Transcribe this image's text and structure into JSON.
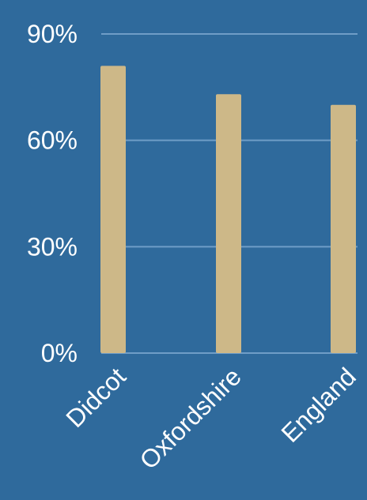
{
  "colors": {
    "background": "#2f6a9c",
    "bar": "#cdb888",
    "grid": "#6f9dc7",
    "text": "#ffffff"
  },
  "chart_data": {
    "type": "bar",
    "categories": [
      "Didcot",
      "Oxfordshire",
      "England"
    ],
    "values": [
      81,
      73,
      70
    ],
    "value_unit": "%",
    "ylim": [
      0,
      90
    ],
    "yticks": [
      {
        "value": 0,
        "label": "0%"
      },
      {
        "value": 30,
        "label": "30%"
      },
      {
        "value": 60,
        "label": "60%"
      },
      {
        "value": 90,
        "label": "90%"
      }
    ],
    "grid": true,
    "title": "",
    "xlabel": "",
    "ylabel": "",
    "legend": "none"
  }
}
